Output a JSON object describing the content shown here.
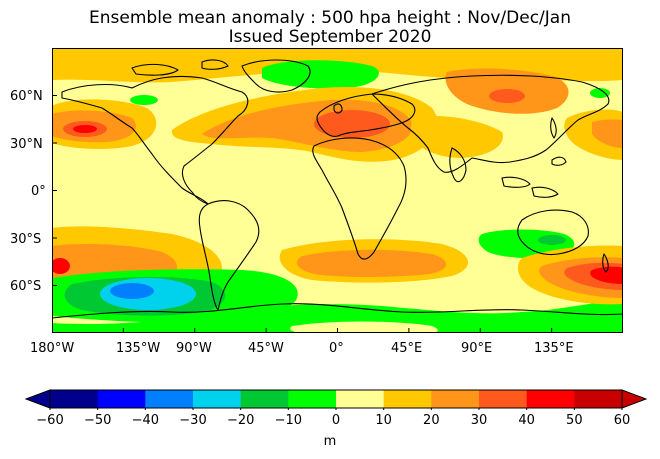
{
  "title": {
    "line1": "Ensemble mean anomaly : 500 hpa height : Nov/Dec/Jan",
    "line2": "Issued September 2020"
  },
  "map": {
    "projection": "equirectangular",
    "lon_range": [
      -180,
      180
    ],
    "lat_range": [
      -90,
      90
    ],
    "background_level": "0 to 10",
    "anomaly_regions": [
      {
        "name": "north-atlantic-positive",
        "level": "20 to 40"
      },
      {
        "name": "north-pacific-positive",
        "level": "20 to 40"
      },
      {
        "name": "europe-positive",
        "level": "20 to 40"
      },
      {
        "name": "siberia-positive",
        "level": "20 to 40"
      },
      {
        "name": "greenland-negative",
        "level": "-10 to 0"
      },
      {
        "name": "australia-negative",
        "level": "-10 to 0"
      },
      {
        "name": "south-pacific-negative",
        "level": "-30 to -10"
      },
      {
        "name": "south-atlantic-positive",
        "level": "20 to 30"
      },
      {
        "name": "tasman-sea-positive",
        "level": "30 to 50"
      }
    ]
  },
  "axes": {
    "lat_ticks": [
      "60°N",
      "30°N",
      "0°",
      "30°S",
      "60°S"
    ],
    "lon_ticks": [
      "180°W",
      "135°W",
      "90°W",
      "45°W",
      "0°",
      "45°E",
      "90°E",
      "135°E"
    ]
  },
  "colorbar": {
    "levels": [
      "−60",
      "−50",
      "−40",
      "−30",
      "−20",
      "−10",
      "0",
      "10",
      "20",
      "30",
      "40",
      "50",
      "60"
    ],
    "colors": [
      "#00008c",
      "#0000ff",
      "#0080ff",
      "#00d2ee",
      "#00c832",
      "#00ff00",
      "#ffff96",
      "#ffc800",
      "#ff9619",
      "#ff5a1e",
      "#ff0000",
      "#c80000"
    ],
    "extend_low_color": "#00008c",
    "extend_high_color": "#c80000",
    "units": "m"
  },
  "colors": {
    "base": "#ffff96",
    "yellow": "#ffc800",
    "orange": "#ff9619",
    "dark_orange": "#ff5a1e",
    "red": "#ff0000",
    "green": "#00ff00",
    "dark_green": "#00c832",
    "cyan": "#00d2ee",
    "blue": "#0080ff",
    "coastline": "#000000"
  }
}
